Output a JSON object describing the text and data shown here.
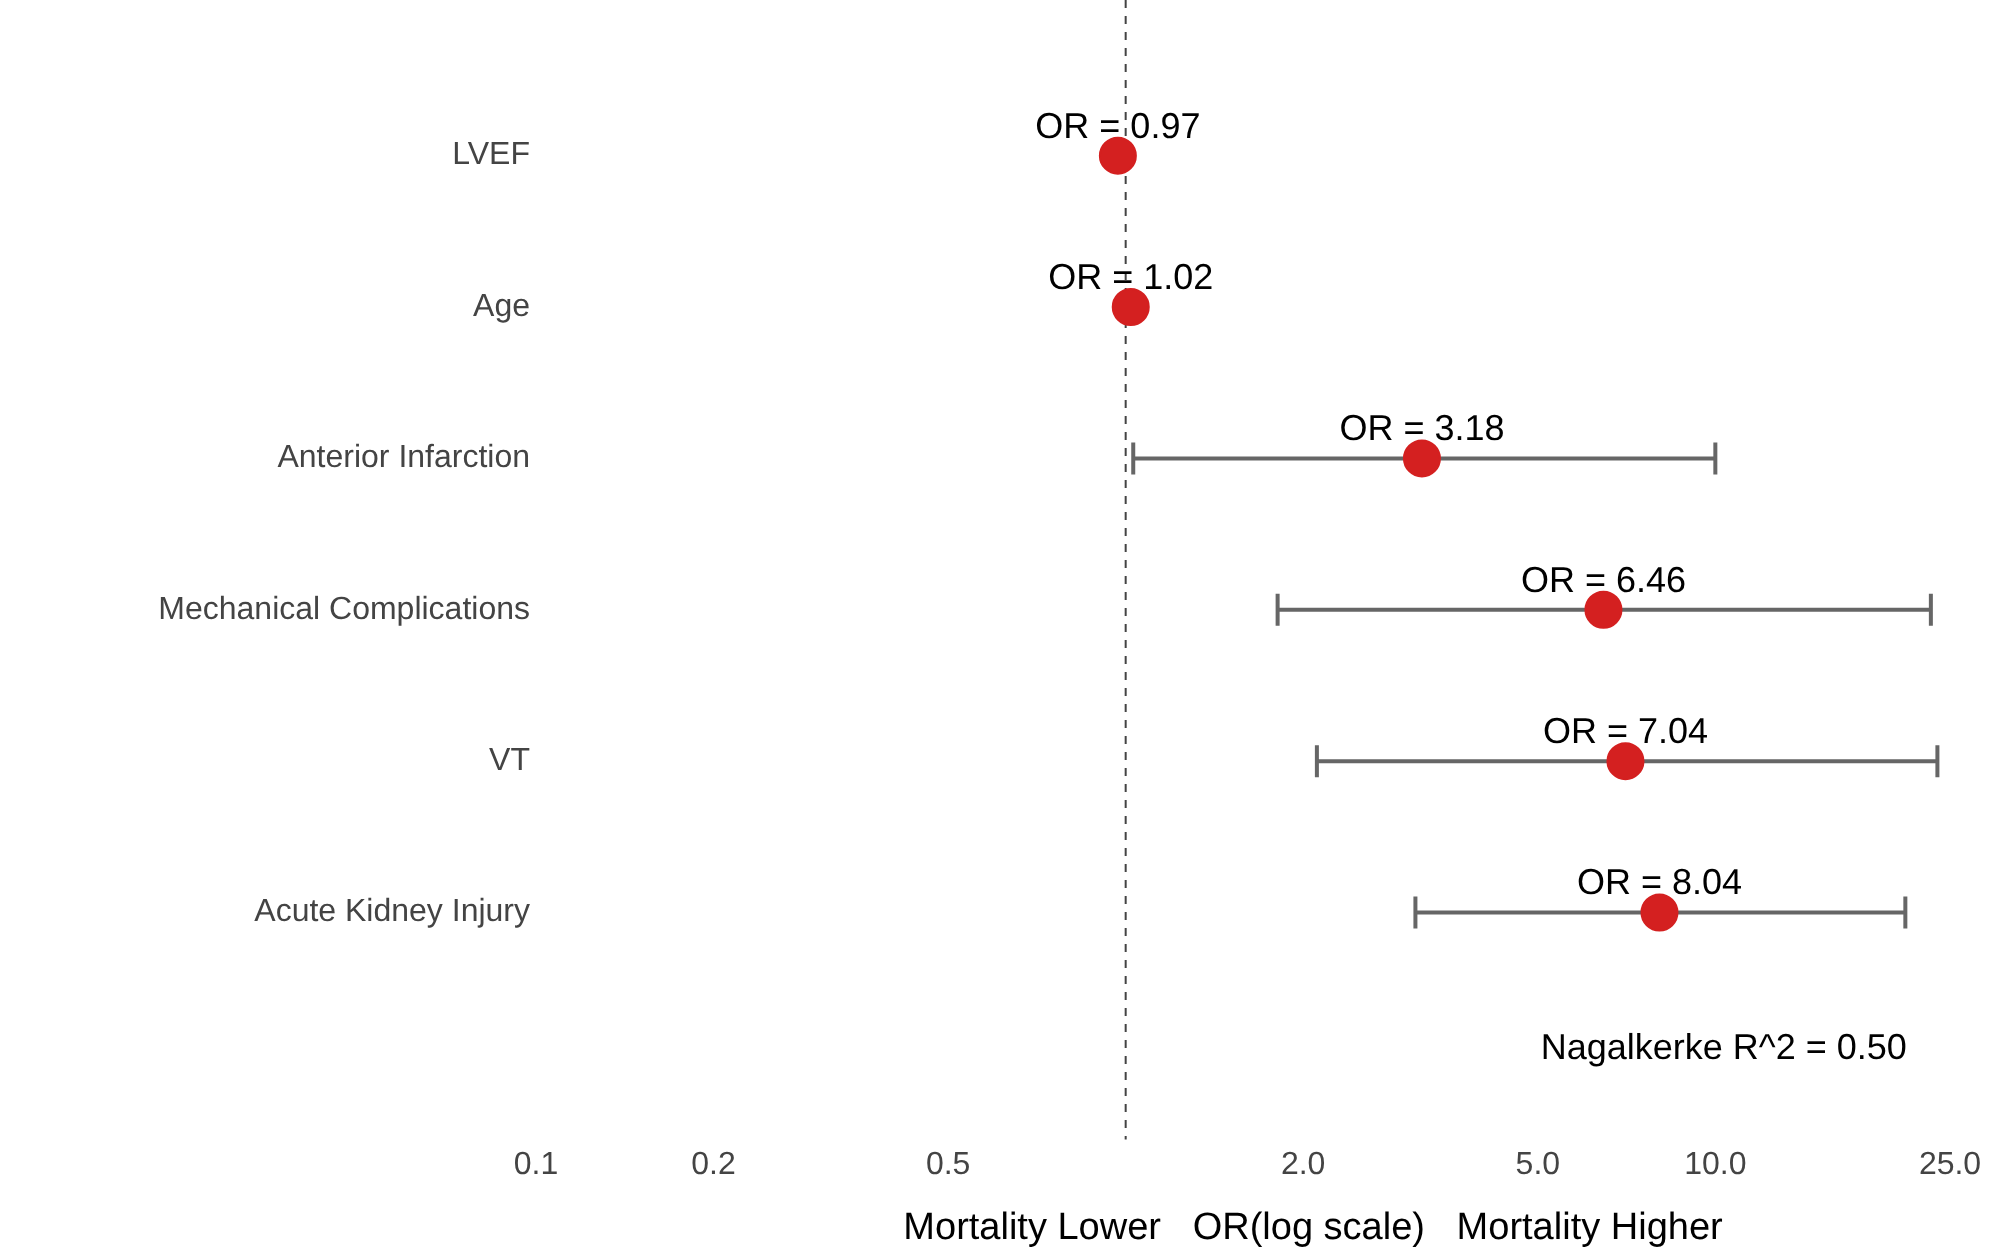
{
  "chart_data": {
    "type": "scatter",
    "xlabel": "Mortality Lower   OR(log scale)   Mortality Higher",
    "categories": [
      "LVEF",
      "Age",
      "Anterior Infarction",
      "Mechanical Complications",
      "VT",
      "Acute Kidney Injury",
      null
    ],
    "series": [
      {
        "color": "#d42020",
        "values": [
          0.97,
          1.02,
          3.18,
          6.46,
          7.04,
          8.04,
          null
        ],
        "errors": [
          null,
          null,
          [
            1.03,
            10.0
          ],
          [
            1.81,
            23.2
          ],
          [
            2.11,
            23.8
          ],
          [
            3.1,
            21.0
          ],
          null
        ],
        "value_labels": [
          "OR = 0.97",
          "OR = 1.02",
          "OR = 3.18",
          "OR = 6.46",
          "OR = 7.04",
          "OR = 8.04",
          null
        ]
      }
    ],
    "log": "x",
    "xlim": [
      0.1,
      25
    ],
    "orientation": "horizontal",
    "xticks": [
      {
        "value": 0.1,
        "label": "0.1"
      },
      {
        "value": 0.2,
        "label": "0.2"
      },
      {
        "value": 0.5,
        "label": "0.5"
      },
      {
        "value": 2,
        "label": "2.0"
      },
      {
        "value": 5,
        "label": "5.0"
      },
      {
        "value": 10,
        "label": "10.0"
      },
      {
        "value": 25,
        "label": "25.0"
      }
    ],
    "ref_lines": [
      {
        "axis": "x",
        "value": 1,
        "label": null,
        "line_style": "dashed"
      }
    ],
    "annotations": [
      "Nagalkerke R^2 = 0.50"
    ],
    "grid": false,
    "legend": false,
    "marker": "circle"
  }
}
